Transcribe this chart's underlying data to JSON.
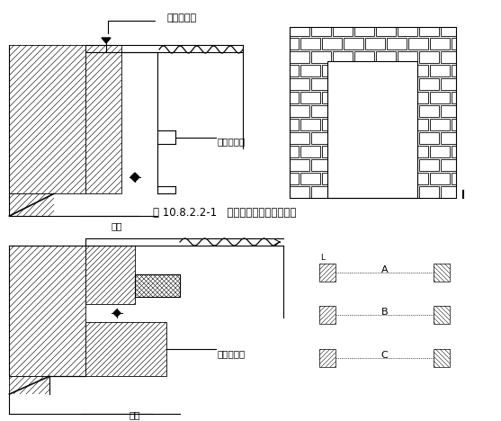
{
  "title_caption": "图 10.8.2.2-1   钢木质防火门结构安装图",
  "label_top_nail": "打钉拉铁皮",
  "label_steel_frame": "钢防火门框",
  "label_wall1": "墙体",
  "label_wood_frame": "防火木门框",
  "label_wall2": "墙体",
  "label_A": "A",
  "label_B": "B",
  "label_C": "C",
  "bg_color": "#ffffff",
  "line_color": "#000000"
}
